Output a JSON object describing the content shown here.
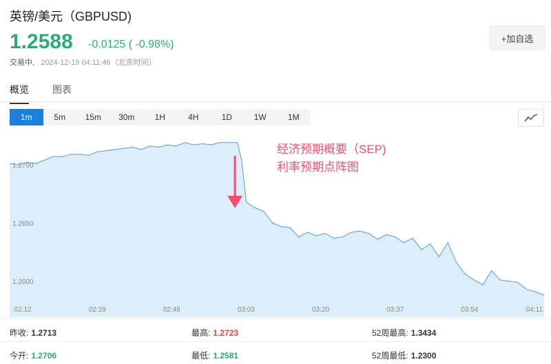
{
  "header": {
    "title": "英镑/美元（GBPUSD)",
    "price": "1.2588",
    "change": "-0.0125 ( -0.98%)",
    "status_label": "交易中,",
    "timestamp": "2024-12-19 04:11:46（北京时间）",
    "add_watch_label": "+加自选",
    "up_color": "#e8453c",
    "down_color": "#2eaa7a"
  },
  "tabs": [
    {
      "label": "概览",
      "active": true
    },
    {
      "label": "图表",
      "active": false
    }
  ],
  "intervals": [
    {
      "label": "1m",
      "active": true
    },
    {
      "label": "5m",
      "active": false
    },
    {
      "label": "15m",
      "active": false
    },
    {
      "label": "30m",
      "active": false
    },
    {
      "label": "1H",
      "active": false
    },
    {
      "label": "4H",
      "active": false
    },
    {
      "label": "1D",
      "active": false
    },
    {
      "label": "1W",
      "active": false
    },
    {
      "label": "1M",
      "active": false
    }
  ],
  "chart_type_icon": "line-chart-icon",
  "chart_data": {
    "type": "area",
    "x_ticks": [
      "02:12",
      "02:29",
      "02:46",
      "03:03",
      "03:20",
      "03:37",
      "03:54",
      "04:11"
    ],
    "y_ticks": [
      1.27,
      1.265,
      1.26
    ],
    "y_tick_labels": [
      "1.2700",
      "1.2650",
      "1.2600"
    ],
    "ylim": [
      1.2581,
      1.2723
    ],
    "x_range": [
      "02:09",
      "04:11"
    ],
    "line_color": "#5b9bd5",
    "fill_color": "#deedfa",
    "grid": false,
    "series": [
      {
        "x": [
          "02:09",
          "02:11",
          "02:13",
          "02:15",
          "02:17",
          "02:19",
          "02:21",
          "02:23",
          "02:25",
          "02:27",
          "02:29",
          "02:31",
          "02:33",
          "02:35",
          "02:37",
          "02:39",
          "02:41",
          "02:43",
          "02:45",
          "02:47",
          "02:49",
          "02:51",
          "02:53",
          "02:55",
          "02:57",
          "02:59",
          "03:01",
          "03:02",
          "03:03",
          "03:05",
          "03:07",
          "03:09",
          "03:11",
          "03:13",
          "03:15",
          "03:17",
          "03:19",
          "03:21",
          "03:23",
          "03:25",
          "03:27",
          "03:29",
          "03:31",
          "03:33",
          "03:35",
          "03:37",
          "03:39",
          "03:41",
          "03:43",
          "03:45",
          "03:47",
          "03:49",
          "03:51",
          "03:53",
          "03:55",
          "03:57",
          "03:59",
          "04:01",
          "04:03",
          "04:05",
          "04:07",
          "04:09",
          "04:11"
        ],
        "y": [
          1.2701,
          1.27,
          1.2702,
          1.2701,
          1.2704,
          1.2707,
          1.2707,
          1.2709,
          1.2709,
          1.2708,
          1.2711,
          1.2712,
          1.2713,
          1.2714,
          1.2715,
          1.2713,
          1.2716,
          1.2715,
          1.2717,
          1.2716,
          1.2719,
          1.2717,
          1.2718,
          1.2717,
          1.2719,
          1.2719,
          1.2719,
          1.2703,
          1.2668,
          1.2663,
          1.266,
          1.265,
          1.2647,
          1.2646,
          1.2638,
          1.2642,
          1.2639,
          1.2641,
          1.2637,
          1.2638,
          1.2642,
          1.2643,
          1.2641,
          1.2636,
          1.264,
          1.2638,
          1.2633,
          1.2637,
          1.2627,
          1.2632,
          1.2621,
          1.2633,
          1.2616,
          1.2606,
          1.2601,
          1.2597,
          1.2609,
          1.2601,
          1.26,
          1.2599,
          1.2593,
          1.2591,
          1.2588
        ]
      }
    ],
    "annotation": {
      "text_lines": [
        "经济预期概要（SEP)",
        "利率预期点阵图"
      ],
      "arrow_at_x": "03:02",
      "color": "#f0506e"
    }
  },
  "stats": [
    {
      "label": "昨收:",
      "value": "1.2713",
      "color": "#333333"
    },
    {
      "label": "最高:",
      "value": "1.2723",
      "color": "#e8453c"
    },
    {
      "label": "52周最高:",
      "value": "1.3434",
      "color": "#333333"
    },
    {
      "label": "今开:",
      "value": "1.2706",
      "color": "#2eaa7a"
    },
    {
      "label": "最低:",
      "value": "1.2581",
      "color": "#2eaa7a"
    },
    {
      "label": "52周最低:",
      "value": "1.2300",
      "color": "#333333"
    }
  ]
}
